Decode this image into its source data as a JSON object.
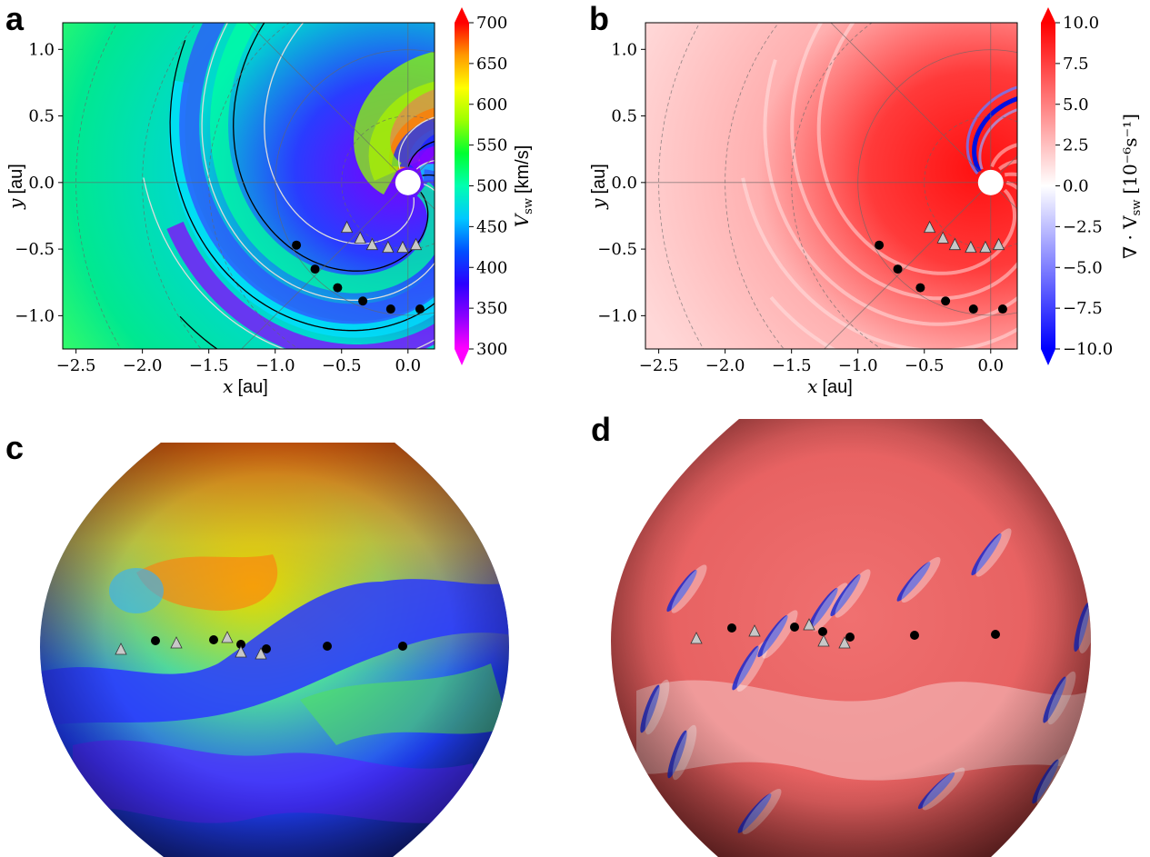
{
  "panels": {
    "a": "a",
    "b": "b",
    "c": "c",
    "d": "d"
  },
  "chart_data": [
    {
      "panel": "a",
      "type": "heatmap",
      "quantity": "solar wind speed",
      "xlabel_var": "x",
      "xlabel_unit": "[au]",
      "ylabel_var": "y",
      "ylabel_unit": "[au]",
      "xlim": [
        -2.6,
        0.2
      ],
      "ylim": [
        -1.25,
        1.2
      ],
      "xticks": [
        -2.5,
        -2.0,
        -1.5,
        -1.0,
        -0.5,
        0.0
      ],
      "xtick_labels": [
        "−2.5",
        "−2.0",
        "−1.5",
        "−1.0",
        "−0.5",
        "0.0"
      ],
      "yticks": [
        1.0,
        0.5,
        0.0,
        -0.5,
        -1.0
      ],
      "ytick_labels": [
        "1.0",
        "0.5",
        "0.0",
        "−0.5",
        "−1.0"
      ],
      "colorbar": {
        "label_var": "V",
        "label_sub": "sw",
        "label_unit": "[km/s]",
        "range": [
          300,
          700
        ],
        "ticks": [
          "700",
          "650",
          "600",
          "550",
          "500",
          "450",
          "400",
          "350",
          "300"
        ],
        "colormap": [
          "#ff00ff",
          "#8a00ff",
          "#2a00ff",
          "#0050ff",
          "#00c8ff",
          "#00ffb0",
          "#00ff30",
          "#9cff00",
          "#ffff00",
          "#ffb000",
          "#ff5a00",
          "#ff0000"
        ]
      },
      "spacecraft_points": [
        [
          -0.84,
          -0.47
        ],
        [
          -0.7,
          -0.65
        ],
        [
          -0.53,
          -0.79
        ],
        [
          -0.34,
          -0.89
        ],
        [
          -0.13,
          -0.95
        ],
        [
          0.09,
          -0.95
        ]
      ],
      "observer_triangles": [
        [
          -0.46,
          -0.34
        ],
        [
          -0.36,
          -0.42
        ],
        [
          -0.27,
          -0.47
        ],
        [
          -0.15,
          -0.49
        ],
        [
          -0.04,
          -0.49
        ],
        [
          0.06,
          -0.47
        ]
      ],
      "sun_position": [
        0.0,
        0.0
      ]
    },
    {
      "panel": "b",
      "type": "heatmap",
      "quantity": "divergence of solar wind velocity",
      "xlabel_var": "x",
      "xlabel_unit": "[au]",
      "ylabel_var": "y",
      "ylabel_unit": "[au]",
      "xlim": [
        -2.6,
        0.2
      ],
      "ylim": [
        -1.25,
        1.2
      ],
      "xticks": [
        -2.5,
        -2.0,
        -1.5,
        -1.0,
        -0.5,
        0.0
      ],
      "xtick_labels": [
        "−2.5",
        "−2.0",
        "−1.5",
        "−1.0",
        "−0.5",
        "0.0"
      ],
      "yticks": [
        1.0,
        0.5,
        0.0,
        -0.5,
        -1.0
      ],
      "ytick_labels": [
        "1.0",
        "0.5",
        "0.0",
        "−0.5",
        "−1.0"
      ],
      "colorbar": {
        "label_main": "∇ · V",
        "label_sub": "sw",
        "label_unit": "[10⁻⁶s⁻¹]",
        "range": [
          -10,
          10
        ],
        "ticks": [
          "10.0",
          "7.5",
          "5.0",
          "2.5",
          "0.0",
          "−2.5",
          "−5.0",
          "−7.5",
          "−10.0"
        ],
        "colormap": [
          "#0000ff",
          "#ffffff",
          "#ff0000"
        ]
      },
      "spacecraft_points": [
        [
          -0.84,
          -0.47
        ],
        [
          -0.7,
          -0.65
        ],
        [
          -0.53,
          -0.79
        ],
        [
          -0.34,
          -0.89
        ],
        [
          -0.13,
          -0.95
        ],
        [
          0.09,
          -0.95
        ]
      ],
      "observer_triangles": [
        [
          -0.46,
          -0.34
        ],
        [
          -0.36,
          -0.42
        ],
        [
          -0.27,
          -0.47
        ],
        [
          -0.15,
          -0.49
        ],
        [
          -0.04,
          -0.49
        ],
        [
          0.06,
          -0.47
        ]
      ],
      "sun_position": [
        0.0,
        0.0
      ]
    },
    {
      "panel": "c",
      "type": "heatmap",
      "projection": "sphere",
      "quantity": "solar wind speed (same colormap as panel a)"
    },
    {
      "panel": "d",
      "type": "heatmap",
      "projection": "sphere",
      "quantity": "divergence of solar wind velocity (same colormap as panel b)"
    }
  ]
}
